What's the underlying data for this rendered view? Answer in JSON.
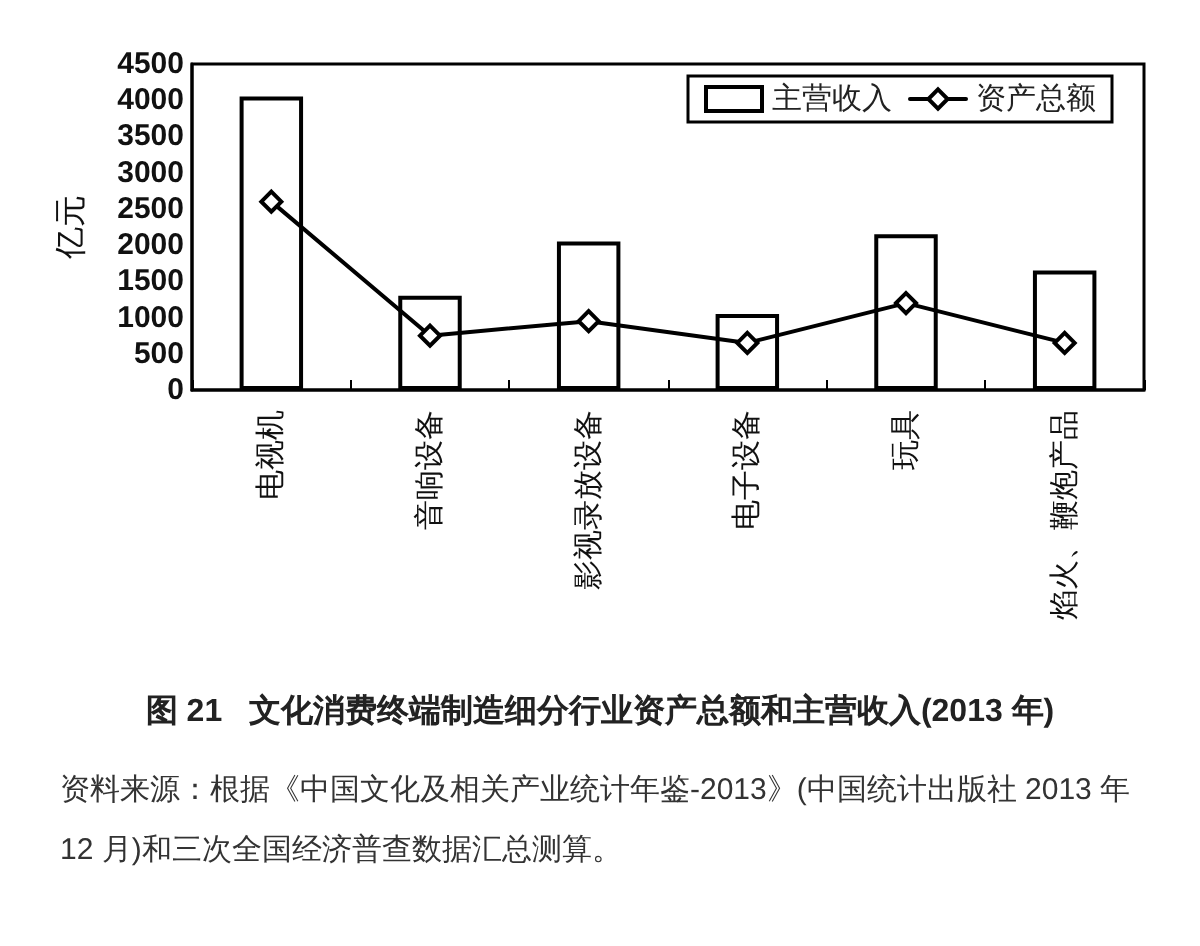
{
  "chart_data": {
    "type": "bar",
    "title": "图 21   文化消费终端制造细分行业资产总额和主营收入(2013 年)",
    "ylabel": "亿元",
    "annotations": [
      "资料来源：根据《中国文化及相关产业统计年鉴-2013》(中国统计出版社 2013 年 12 月)和三次全国经济普查数据汇总测算。"
    ],
    "categories": [
      "电视机",
      "音响设备",
      "影视录放设备",
      "电子设备",
      "玩具",
      "焰火、鞭炮产品"
    ],
    "series": [
      {
        "name": "主营收入",
        "color": "#000000",
        "values": [
          4050,
          1300,
          2050,
          1050,
          2150,
          1650
        ]
      },
      {
        "name": "资产总额",
        "type": "line",
        "color": "#000000",
        "values": [
          2600,
          750,
          950,
          650,
          1200,
          650
        ]
      }
    ],
    "ylim": [
      0,
      4500
    ],
    "yticks": [
      0,
      500,
      1000,
      1500,
      2000,
      2500,
      3000,
      3500,
      4000,
      4500
    ],
    "marker": "diamond",
    "legend": "top right",
    "grid": false
  }
}
